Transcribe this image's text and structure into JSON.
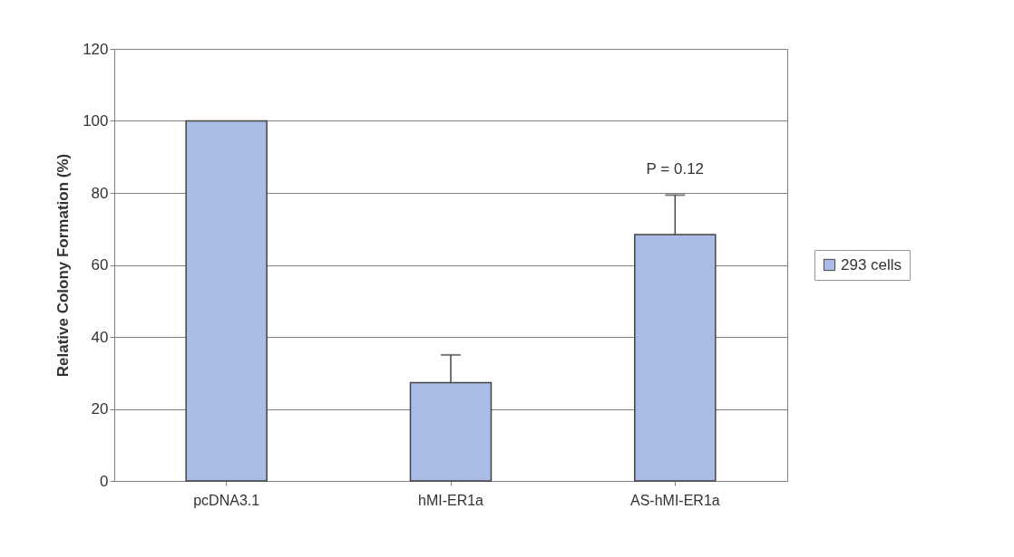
{
  "chart_data": {
    "type": "bar",
    "ylabel": "Relative Colony Formation (%)",
    "categories": [
      "pcDNA3.1",
      "hMI-ER1a",
      "AS-hMI-ER1a"
    ],
    "series": [
      {
        "name": "293 cells",
        "color": "#aabbe6",
        "values": [
          100,
          27.3,
          68.4
        ],
        "errors": [
          null,
          [
            27.3,
            35
          ],
          [
            68.4,
            79.4
          ]
        ]
      }
    ],
    "ylim": [
      0,
      120
    ],
    "yticks": [
      0,
      20,
      40,
      60,
      80,
      100,
      120
    ],
    "grid": "y",
    "legend": "right",
    "annotations": [
      "P = 0.12"
    ]
  }
}
